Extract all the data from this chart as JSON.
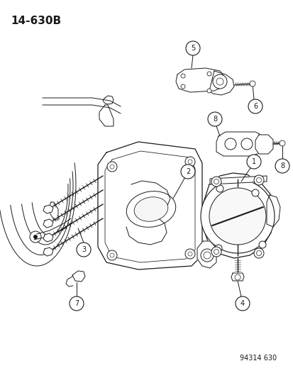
{
  "title": "14-630B",
  "footer": "94314 630",
  "bg_color": "#ffffff",
  "line_color": "#1a1a1a",
  "figsize": [
    4.14,
    5.33
  ],
  "dpi": 100,
  "title_fontsize": 11,
  "footer_fontsize": 7,
  "label_fontsize": 7,
  "label_circle_r": 0.018,
  "lw": 0.7
}
